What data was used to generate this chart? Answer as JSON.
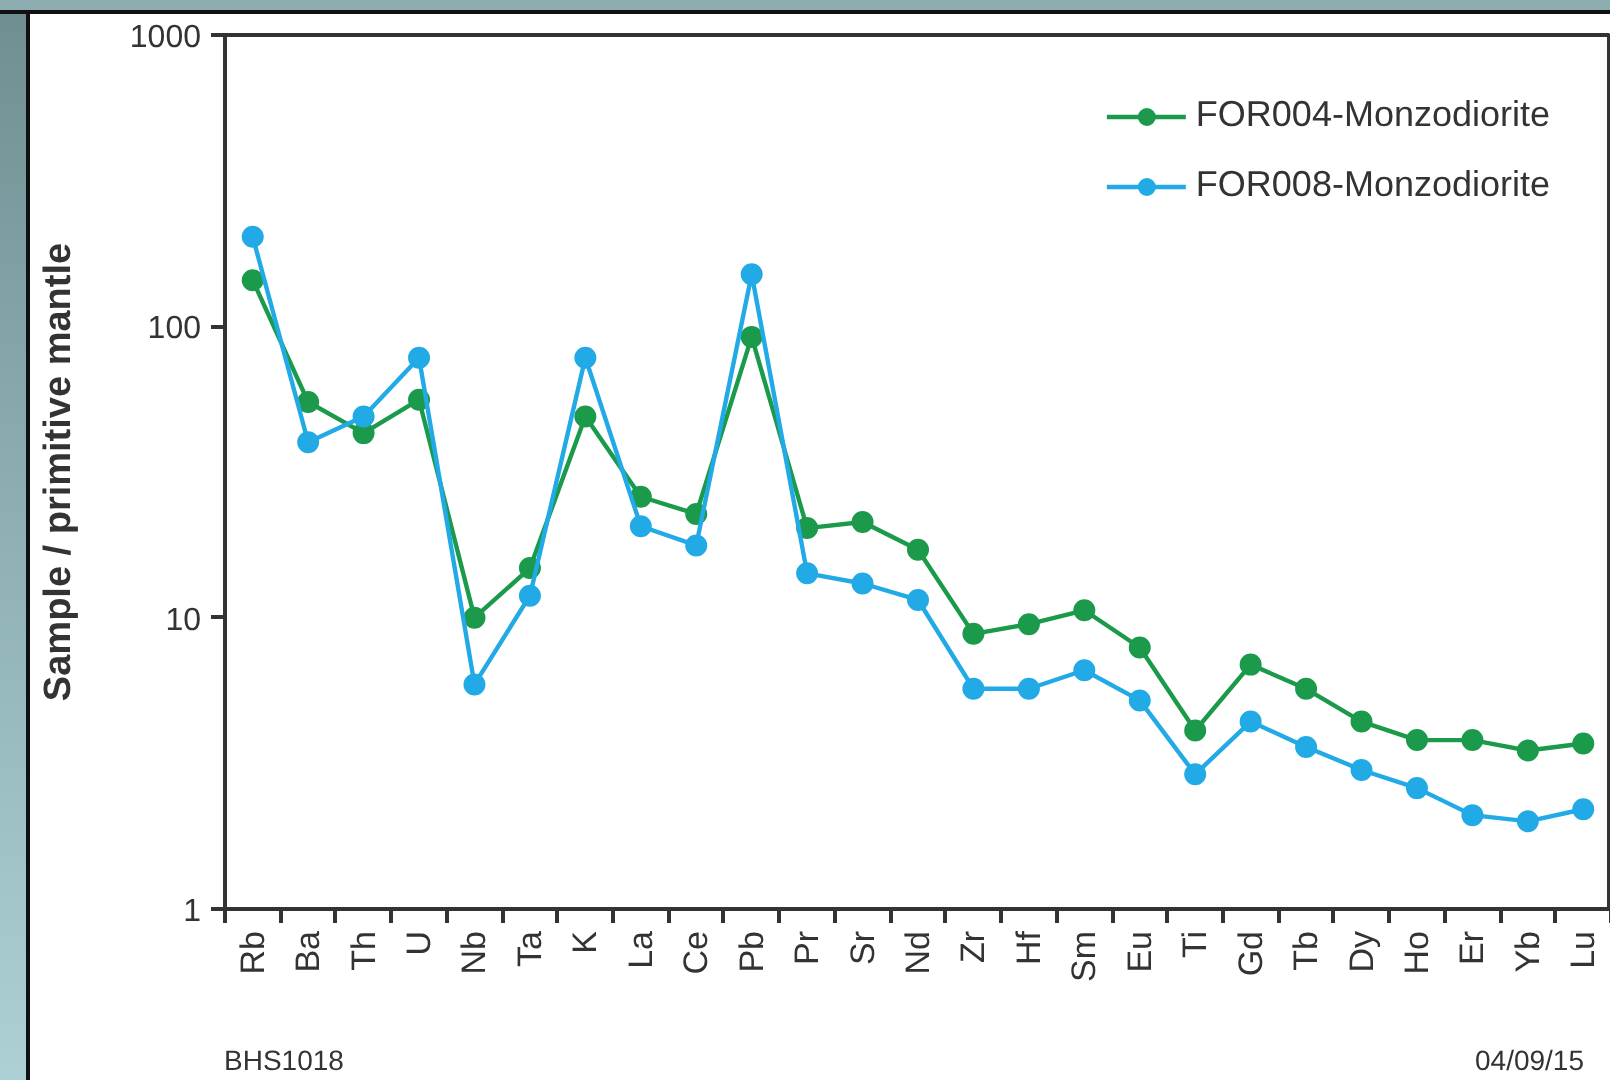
{
  "chart_data": {
    "type": "line",
    "ylabel": "Sample / primitive mantle",
    "log": true,
    "ylim": [
      1,
      1000
    ],
    "yticks": [
      1,
      10,
      100,
      1000
    ],
    "marker": "circle",
    "legend": "top right",
    "categories": [
      "Rb",
      "Ba",
      "Th",
      "U",
      "Nb",
      "Ta",
      "K",
      "La",
      "Ce",
      "Pb",
      "Pr",
      "Sr",
      "Nd",
      "Zr",
      "Hf",
      "Sm",
      "Eu",
      "Ti",
      "Gd",
      "Tb",
      "Dy",
      "Ho",
      "Er",
      "Yb",
      "Lu"
    ],
    "series": [
      {
        "name": "FOR004-Monzodiorite",
        "color": "#1b9a4b",
        "values": [
          144,
          55,
          43,
          56,
          10,
          14.8,
          49,
          26,
          22.7,
          92,
          20.3,
          21.3,
          17.1,
          8.8,
          9.5,
          10.6,
          7.9,
          4.1,
          6.9,
          5.7,
          4.4,
          3.8,
          3.8,
          3.5,
          3.7
        ]
      },
      {
        "name": "FOR008-Monzodiorite",
        "color": "#22aae6",
        "values": [
          203,
          40,
          49,
          78,
          5.9,
          11.9,
          78,
          20.6,
          17.7,
          151,
          14.2,
          13.1,
          11.5,
          5.7,
          5.7,
          6.6,
          5.2,
          2.9,
          4.4,
          3.6,
          3.0,
          2.6,
          2.1,
          2.0,
          2.2
        ]
      }
    ],
    "annotations": [
      "BHS1018",
      "04/09/15"
    ]
  }
}
